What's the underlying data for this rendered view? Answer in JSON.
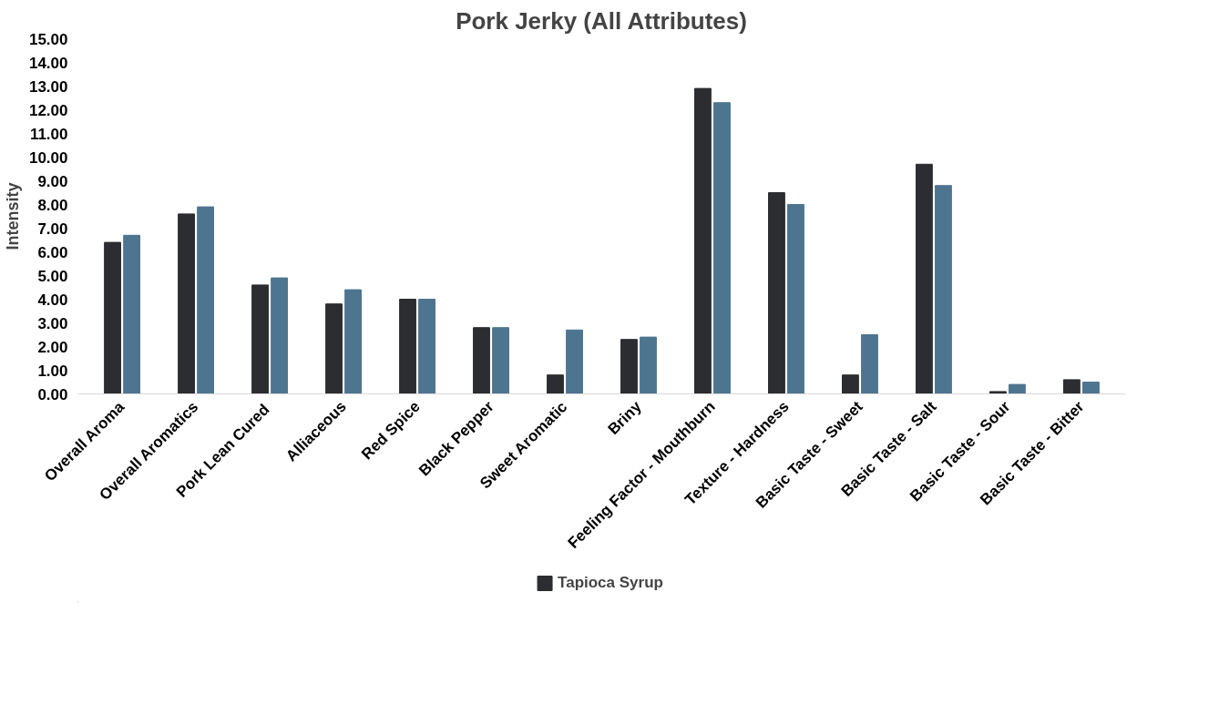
{
  "chart_data": {
    "type": "bar",
    "title": "Pork Jerky (All Attributes)",
    "ylabel": "Intensity",
    "categories": [
      "Overall Aroma",
      "Overall Aromatics",
      "Pork  Lean Cured",
      "Alliaceous",
      "Red Spice",
      "Black Pepper",
      "Sweet Aromatic",
      "Briny",
      "Feeling Factor - Mouthburn",
      "Texture - Hardness",
      "Basic Taste - Sweet",
      "Basic Taste - Salt",
      "Basic Taste - Sour",
      "Basic Taste - Bitter"
    ],
    "series": [
      {
        "name": "Tapioca Syrup",
        "color": "#2b2d30",
        "values": [
          6.4,
          7.6,
          4.6,
          3.8,
          4.0,
          2.8,
          0.8,
          2.3,
          12.9,
          8.5,
          0.8,
          9.7,
          0.1,
          0.6
        ]
      },
      {
        "color": "#4e758f",
        "values": [
          6.7,
          7.9,
          4.9,
          4.4,
          4.0,
          2.8,
          2.7,
          2.4,
          12.3,
          8.0,
          2.5,
          8.8,
          0.4,
          0.5
        ]
      }
    ],
    "ylim": [
      0,
      15
    ],
    "yticks": [
      {
        "value": 0,
        "label": "0.00"
      },
      {
        "value": 1,
        "label": "1.00"
      },
      {
        "value": 2,
        "label": "2.00"
      },
      {
        "value": 3,
        "label": "3.00"
      },
      {
        "value": 4,
        "label": "4.00"
      },
      {
        "value": 5,
        "label": "5.00"
      },
      {
        "value": 6,
        "label": "6.00"
      },
      {
        "value": 7,
        "label": "7.00"
      },
      {
        "value": 8,
        "label": "8.00"
      },
      {
        "value": 9,
        "label": "9.00"
      },
      {
        "value": 10,
        "label": "10.00"
      },
      {
        "value": 11,
        "label": "11.00"
      },
      {
        "value": 12,
        "label": "12.00"
      },
      {
        "value": 13,
        "label": "13.00"
      },
      {
        "value": 14,
        "label": "14.00"
      },
      {
        "value": 15,
        "label": "15.00"
      }
    ],
    "grid": false,
    "legend": "bottom"
  }
}
